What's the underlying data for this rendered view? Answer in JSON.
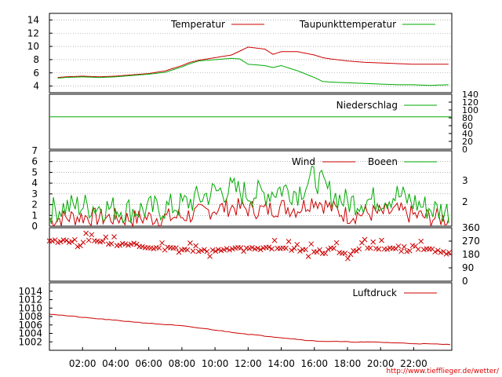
{
  "chart_data": [
    {
      "type": "line",
      "panel": "temperature",
      "ylim": [
        3,
        15
      ],
      "yticks": [
        "4",
        "6",
        "8",
        "10",
        "12",
        "14"
      ],
      "grid": true,
      "legend_placement": "top-right",
      "x": [
        0.5,
        1,
        2,
        3,
        4,
        5,
        6,
        7,
        8,
        8.5,
        9,
        10,
        11,
        11.5,
        12,
        13,
        13.5,
        14,
        15,
        16,
        16.5,
        17,
        18,
        19,
        20,
        21,
        22,
        23,
        24
      ],
      "series": [
        {
          "name": "Temperatur",
          "color": "#cc0000",
          "values": [
            5.3,
            5.4,
            5.5,
            5.4,
            5.5,
            5.7,
            5.9,
            6.3,
            7.1,
            7.6,
            7.9,
            8.3,
            8.7,
            9.3,
            9.9,
            9.6,
            8.8,
            9.2,
            9.2,
            8.7,
            8.3,
            8.1,
            7.8,
            7.6,
            7.5,
            7.4,
            7.3,
            7.3,
            7.3
          ]
        },
        {
          "name": "Taupunkttemperatur",
          "color": "#00aa00",
          "values": [
            5.2,
            5.3,
            5.4,
            5.3,
            5.4,
            5.6,
            5.8,
            6.1,
            6.9,
            7.4,
            7.8,
            8.0,
            8.2,
            8.1,
            7.3,
            7.1,
            6.8,
            7.1,
            6.3,
            5.3,
            4.7,
            4.6,
            4.5,
            4.4,
            4.3,
            4.2,
            4.2,
            4.1,
            4.2
          ]
        }
      ]
    },
    {
      "type": "line",
      "panel": "precipitation",
      "ylim": [
        0,
        140
      ],
      "yticks": [
        "0",
        "20",
        "40",
        "60",
        "80",
        "100",
        "120",
        "140"
      ],
      "x": [
        0,
        24
      ],
      "series": [
        {
          "name": "Niederschlag",
          "color": "#00aa00",
          "values": [
            0.65,
            0.65
          ]
        }
      ]
    },
    {
      "type": "line",
      "panel": "wind",
      "ylim": [
        0,
        7
      ],
      "yticks": [
        "0",
        "1",
        "2",
        "3",
        "4",
        "5",
        "6",
        "7"
      ],
      "yticks_right": [
        "2",
        "3"
      ],
      "grid": true,
      "legend_placement": "top-right",
      "x": [
        0,
        1,
        2,
        3,
        4,
        5,
        6,
        7,
        8,
        9,
        10,
        11,
        12,
        13,
        14,
        15,
        16,
        17,
        18,
        19,
        20,
        21,
        22,
        23,
        24
      ],
      "series": [
        {
          "name": "Wind",
          "color": "#cc0000",
          "values": [
            0.6,
            0.8,
            0.9,
            0.8,
            0.8,
            0.7,
            0.8,
            0.8,
            0.9,
            1.2,
            1.6,
            1.8,
            1.6,
            1.5,
            1.8,
            1.6,
            2.5,
            1.7,
            1.0,
            1.2,
            1.2,
            1.4,
            1.0,
            0.8,
            0.7
          ]
        },
        {
          "name": "Boeen",
          "color": "#00aa00",
          "values": [
            1.4,
            1.8,
            1.9,
            1.8,
            1.6,
            1.5,
            1.6,
            1.7,
            2.0,
            2.6,
            3.2,
            3.4,
            3.0,
            3.0,
            3.5,
            3.2,
            4.6,
            3.0,
            2.2,
            2.4,
            2.5,
            2.9,
            2.2,
            1.6,
            1.4
          ]
        }
      ]
    },
    {
      "type": "scatter",
      "panel": "wind-direction",
      "ylim": [
        0,
        360
      ],
      "yticks_right": [
        "0",
        "90",
        "180",
        "270",
        "360"
      ],
      "marker": "x",
      "color": "#cc0000",
      "x": [
        0,
        1,
        2,
        3,
        4,
        5,
        6,
        7,
        8,
        9,
        10,
        11,
        12,
        13,
        14,
        15,
        16,
        17,
        18,
        19,
        20,
        21,
        22,
        23,
        24
      ],
      "values": [
        270,
        270,
        270,
        270,
        250,
        250,
        220,
        220,
        220,
        200,
        210,
        220,
        230,
        220,
        230,
        210,
        200,
        220,
        180,
        230,
        220,
        230,
        230,
        210,
        190
      ]
    },
    {
      "type": "line",
      "panel": "pressure",
      "ylim": [
        1000,
        1016
      ],
      "yticks": [
        "1002",
        "1004",
        "1006",
        "1008",
        "1010",
        "1012",
        "1014"
      ],
      "legend_placement": "top-right",
      "x": [
        0,
        2,
        4,
        6,
        8,
        10,
        12,
        14,
        16,
        18,
        20,
        22,
        24
      ],
      "series": [
        {
          "name": "Luftdruck",
          "color": "#cc0000",
          "values": [
            1008.6,
            1007.8,
            1007.1,
            1006.4,
            1005.8,
            1004.8,
            1003.8,
            1003.0,
            1002.2,
            1002.0,
            1001.9,
            1001.6,
            1001.4
          ]
        }
      ]
    }
  ],
  "x_axis": {
    "ticks": [
      "02:00",
      "04:00",
      "06:00",
      "08:00",
      "10:00",
      "12:00",
      "14:00",
      "16:00",
      "18:00",
      "20:00",
      "22:00"
    ]
  },
  "footer": {
    "url_text": "http://www.tiefflieger.de/wetter/",
    "url_color": "#e00000"
  }
}
